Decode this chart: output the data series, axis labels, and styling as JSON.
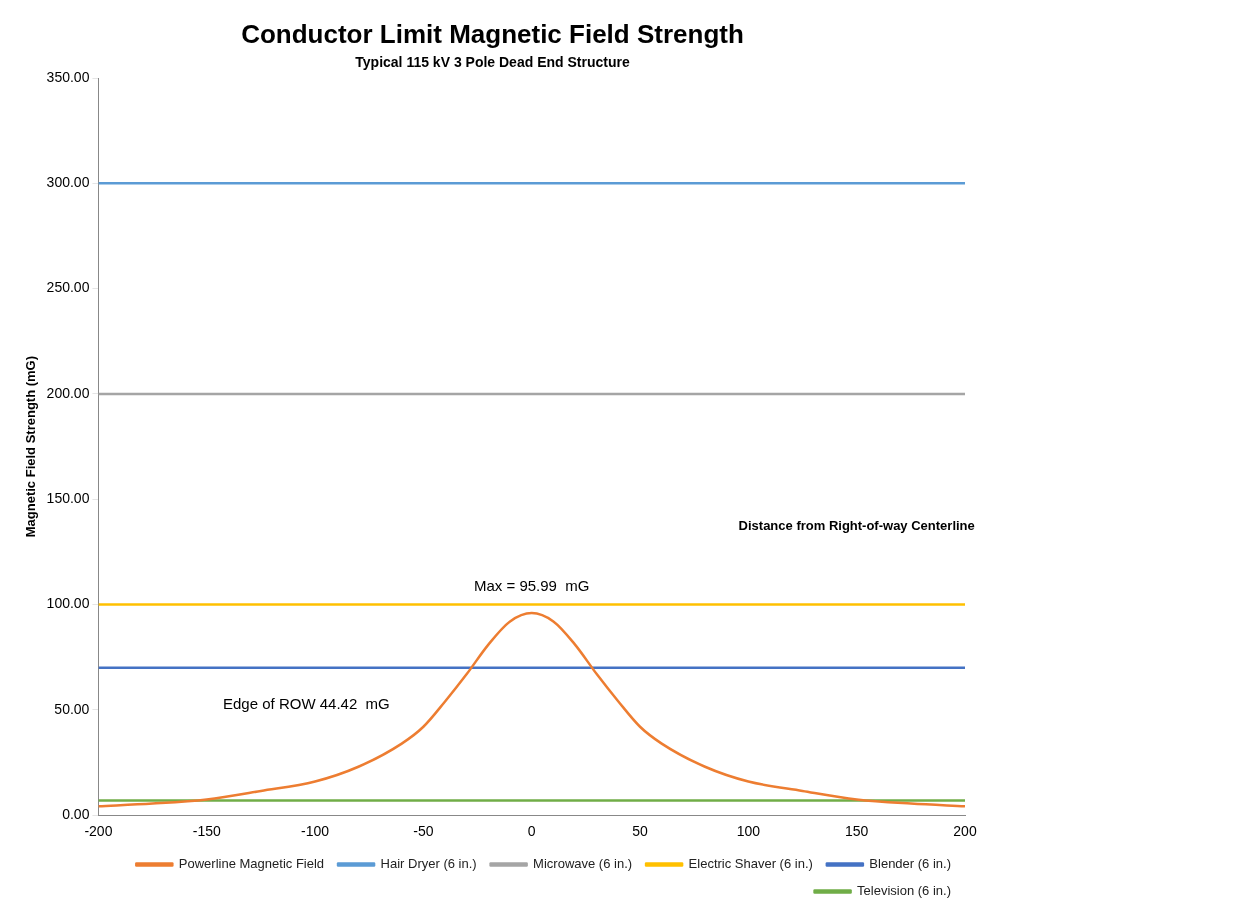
{
  "chart_data": {
    "type": "line",
    "title": "Conductor Limit Magnetic Field Strength",
    "subtitle": "Typical 115 kV 3 Pole Dead End Structure",
    "xlabel": "Distance from Right-of-way Centerline",
    "ylabel": "Magnetic Field Strength (mG)",
    "series": [
      {
        "name": "Powerline Magnetic Field",
        "color": "#ed7d31",
        "x": [
          -200,
          -175,
          -150,
          -125,
          -100,
          -80,
          -60,
          -50,
          -40,
          -30,
          -20,
          -10,
          0,
          10,
          20,
          30,
          40,
          50,
          60,
          80,
          100,
          125,
          150,
          175,
          200
        ],
        "values": [
          4.2,
          5.5,
          7.5,
          11.5,
          16,
          23,
          34,
          42,
          54,
          67,
          81,
          92,
          96,
          92,
          81,
          67,
          54,
          42,
          34,
          23,
          16,
          11.5,
          7.5,
          5.5,
          4.2
        ]
      },
      {
        "name": "Hair Dryer (6 in.)",
        "color": "#5b9bd5",
        "x": [
          -200,
          200
        ],
        "values": [
          300,
          300
        ]
      },
      {
        "name": "Microwave (6 in.)",
        "color": "#a5a5a5",
        "x": [
          -200,
          200
        ],
        "values": [
          200,
          200
        ]
      },
      {
        "name": "Electric Shaver (6 in.)",
        "color": "#ffc000",
        "x": [
          -200,
          200
        ],
        "values": [
          100,
          100
        ]
      },
      {
        "name": "Blender (6 in.)",
        "color": "#4472c4",
        "x": [
          -200,
          200
        ],
        "values": [
          70,
          70
        ]
      },
      {
        "name": "Television (6 in.)",
        "color": "#70ad47",
        "x": [
          -200,
          200
        ],
        "values": [
          7,
          7
        ]
      }
    ],
    "annotations": [
      "Max = 95.99  mG",
      "Edge of ROW 44.42  mG"
    ],
    "xlim": [
      -200,
      200
    ],
    "xticks": [
      -200,
      -150,
      -100,
      -50,
      0,
      50,
      100,
      150,
      200
    ],
    "ylim": [
      0,
      350
    ],
    "yticks": [
      {
        "value": 0,
        "label": "0.00"
      },
      {
        "value": 50,
        "label": "50.00"
      },
      {
        "value": 100,
        "label": "100.00"
      },
      {
        "value": 150,
        "label": "150.00"
      },
      {
        "value": 200,
        "label": "200.00"
      },
      {
        "value": 250,
        "label": "250.00"
      },
      {
        "value": 300,
        "label": "300.00"
      },
      {
        "value": 350,
        "label": "350.00"
      }
    ],
    "grid": false,
    "legend": "bottom",
    "marker": "none",
    "line_style": "solid"
  }
}
